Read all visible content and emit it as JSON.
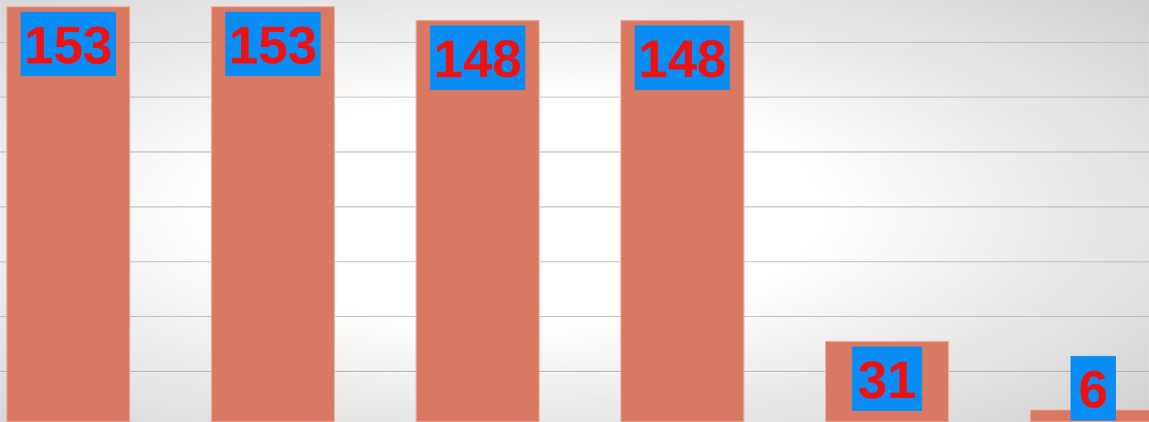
{
  "chart_data": {
    "type": "bar",
    "values": [
      153,
      153,
      148,
      148,
      31,
      6
    ],
    "color": "#d97962",
    "label_box_color": "#0a8cf5",
    "ylim": [
      1.6,
      155.4
    ],
    "yticks": [
      20,
      40,
      60,
      80,
      100,
      120,
      140
    ],
    "grid": true
  }
}
